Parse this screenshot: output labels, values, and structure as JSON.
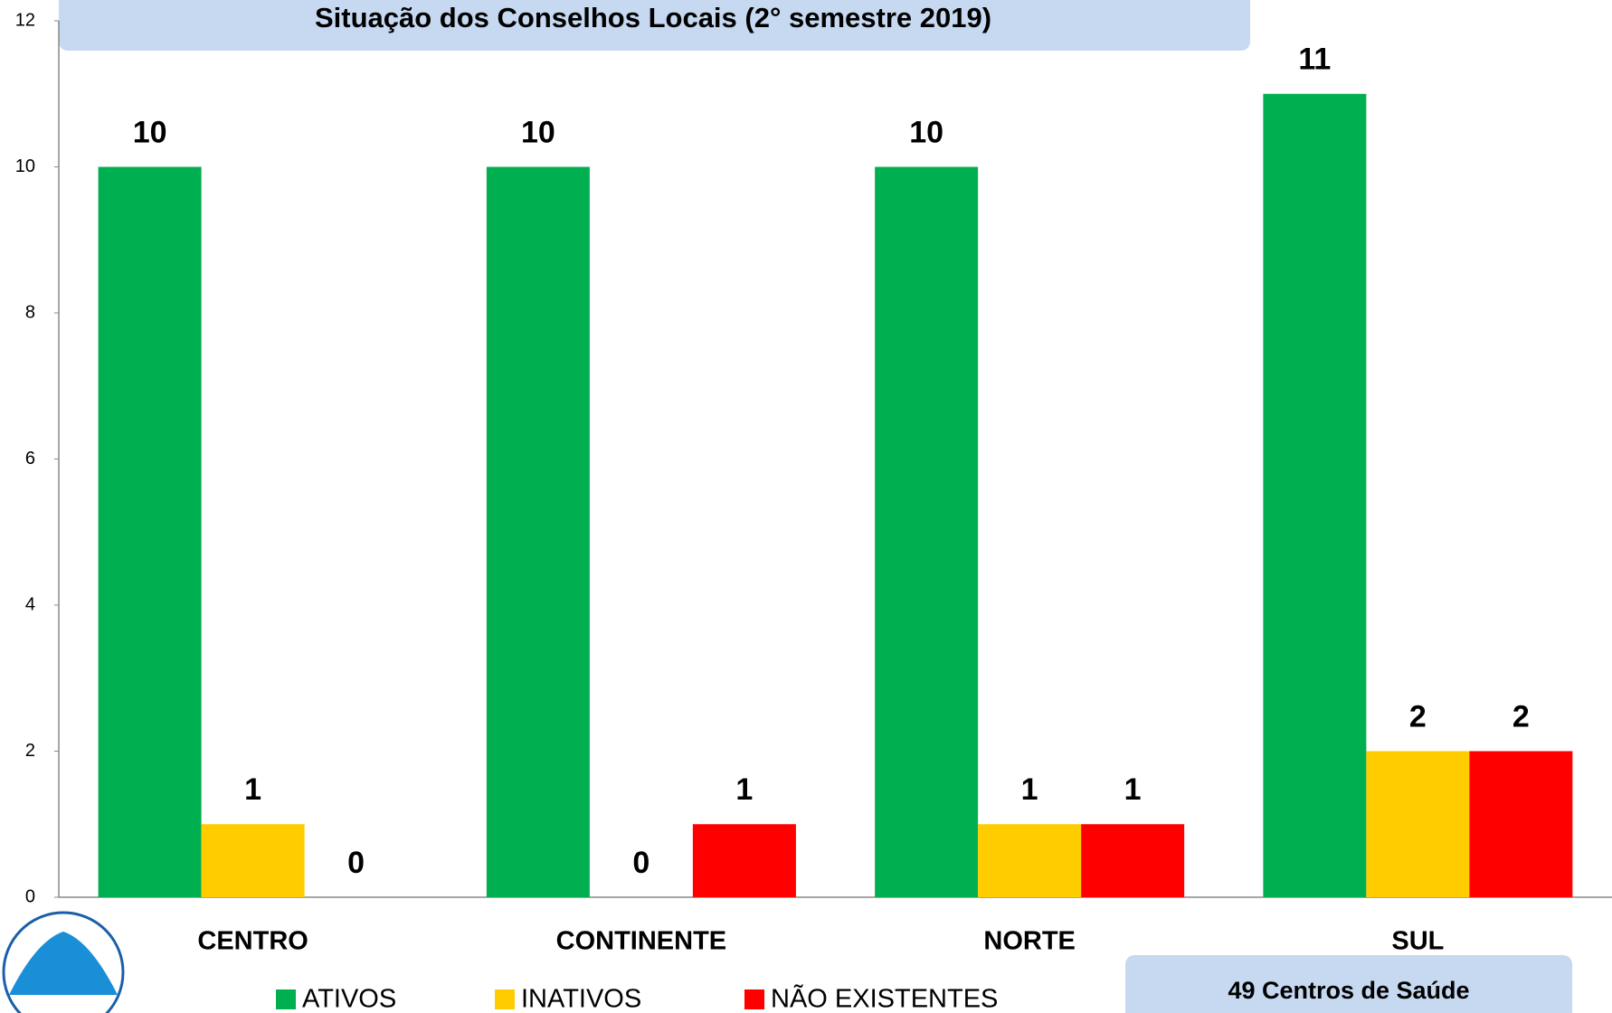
{
  "chart_data": {
    "type": "bar",
    "title": "Situação dos Conselhos Locais (2° semestre 2019)",
    "categories": [
      "CENTRO",
      "CONTINENTE",
      "NORTE",
      "SUL"
    ],
    "series": [
      {
        "name": "ATIVOS",
        "color": "#00b050",
        "values": [
          10,
          10,
          10,
          11
        ]
      },
      {
        "name": "INATIVOS",
        "color": "#ffcc00",
        "values": [
          1,
          0,
          1,
          2
        ]
      },
      {
        "name": "NÃO EXISTENTES",
        "color": "#ff0000",
        "values": [
          0,
          1,
          1,
          2
        ]
      }
    ],
    "ylim": [
      0,
      12
    ],
    "yticks": [
      0,
      2,
      4,
      6,
      8,
      10,
      12
    ],
    "grid": false,
    "legend": "bottom",
    "annotation": "49 Centros de Saúde"
  }
}
